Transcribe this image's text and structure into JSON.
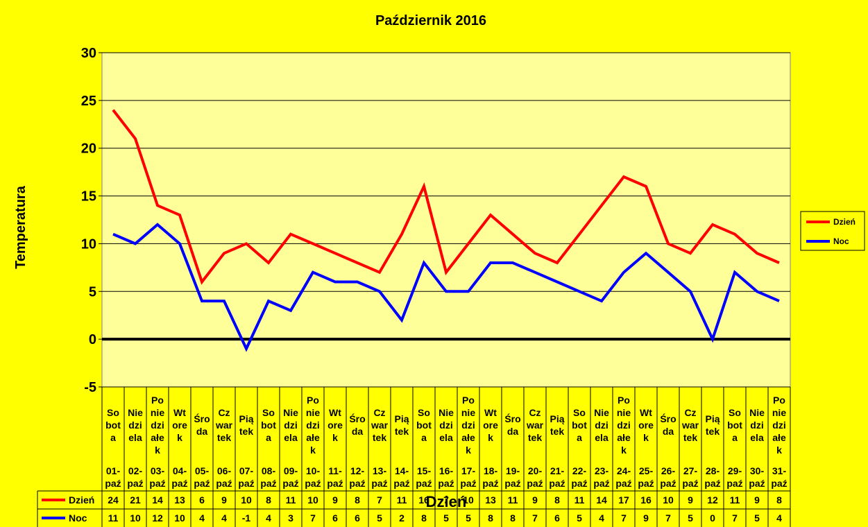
{
  "chart_data": {
    "type": "line",
    "title": "Październik 2016",
    "xlabel": "Dzień",
    "ylabel": "Temperatura",
    "ylim": [
      -5,
      30
    ],
    "yticks": [
      -5,
      0,
      5,
      10,
      15,
      20,
      25,
      30
    ],
    "grid": true,
    "legend_position": "right",
    "categories": [
      {
        "day": [
          "So",
          "bot",
          "a"
        ],
        "date": "01-paź"
      },
      {
        "day": [
          "Nie",
          "dzi",
          "ela"
        ],
        "date": "02-paź"
      },
      {
        "day": [
          "Po",
          "nie",
          "dzi",
          "ałe",
          "k"
        ],
        "date": "03-paź"
      },
      {
        "day": [
          "Wt",
          "ore",
          "k"
        ],
        "date": "04-paź"
      },
      {
        "day": [
          "Śro",
          "da"
        ],
        "date": "05-paź"
      },
      {
        "day": [
          "Cz",
          "war",
          "tek"
        ],
        "date": "06-paź"
      },
      {
        "day": [
          "Pią",
          "tek"
        ],
        "date": "07-paź"
      },
      {
        "day": [
          "So",
          "bot",
          "a"
        ],
        "date": "08-paź"
      },
      {
        "day": [
          "Nie",
          "dzi",
          "ela"
        ],
        "date": "09-paź"
      },
      {
        "day": [
          "Po",
          "nie",
          "dzi",
          "ałe",
          "k"
        ],
        "date": "10-paź"
      },
      {
        "day": [
          "Wt",
          "ore",
          "k"
        ],
        "date": "11-paź"
      },
      {
        "day": [
          "Śro",
          "da"
        ],
        "date": "12-paź"
      },
      {
        "day": [
          "Cz",
          "war",
          "tek"
        ],
        "date": "13-paź"
      },
      {
        "day": [
          "Pią",
          "tek"
        ],
        "date": "14-paź"
      },
      {
        "day": [
          "So",
          "bot",
          "a"
        ],
        "date": "15-paź"
      },
      {
        "day": [
          "Nie",
          "dzi",
          "ela"
        ],
        "date": "16-paź"
      },
      {
        "day": [
          "Po",
          "nie",
          "dzi",
          "ałe",
          "k"
        ],
        "date": "17-paź"
      },
      {
        "day": [
          "Wt",
          "ore",
          "k"
        ],
        "date": "18-paź"
      },
      {
        "day": [
          "Śro",
          "da"
        ],
        "date": "19-paź"
      },
      {
        "day": [
          "Cz",
          "war",
          "tek"
        ],
        "date": "20-paź"
      },
      {
        "day": [
          "Pią",
          "tek"
        ],
        "date": "21-paź"
      },
      {
        "day": [
          "So",
          "bot",
          "a"
        ],
        "date": "22-paź"
      },
      {
        "day": [
          "Nie",
          "dzi",
          "ela"
        ],
        "date": "23-paź"
      },
      {
        "day": [
          "Po",
          "nie",
          "dzi",
          "ałe",
          "k"
        ],
        "date": "24-paź"
      },
      {
        "day": [
          "Wt",
          "ore",
          "k"
        ],
        "date": "25-paź"
      },
      {
        "day": [
          "Śro",
          "da"
        ],
        "date": "26-paź"
      },
      {
        "day": [
          "Cz",
          "war",
          "tek"
        ],
        "date": "27-paź"
      },
      {
        "day": [
          "Pią",
          "tek"
        ],
        "date": "28-paź"
      },
      {
        "day": [
          "So",
          "bot",
          "a"
        ],
        "date": "29-paź"
      },
      {
        "day": [
          "Nie",
          "dzi",
          "ela"
        ],
        "date": "30-paź"
      },
      {
        "day": [
          "Po",
          "nie",
          "dzi",
          "ałe",
          "k"
        ],
        "date": "31-paź"
      }
    ],
    "series": [
      {
        "name": "Dzień",
        "color": "#FF0000",
        "values": [
          24,
          21,
          14,
          13,
          6,
          9,
          10,
          8,
          11,
          10,
          9,
          8,
          7,
          11,
          16,
          7,
          10,
          13,
          11,
          9,
          8,
          11,
          14,
          17,
          16,
          10,
          9,
          12,
          11,
          9,
          8
        ]
      },
      {
        "name": "Noc",
        "color": "#0000FF",
        "values": [
          11,
          10,
          12,
          10,
          4,
          4,
          -1,
          4,
          3,
          7,
          6,
          6,
          5,
          2,
          8,
          5,
          5,
          8,
          8,
          7,
          6,
          5,
          4,
          7,
          9,
          7,
          5,
          0,
          7,
          5,
          4
        ]
      }
    ]
  }
}
